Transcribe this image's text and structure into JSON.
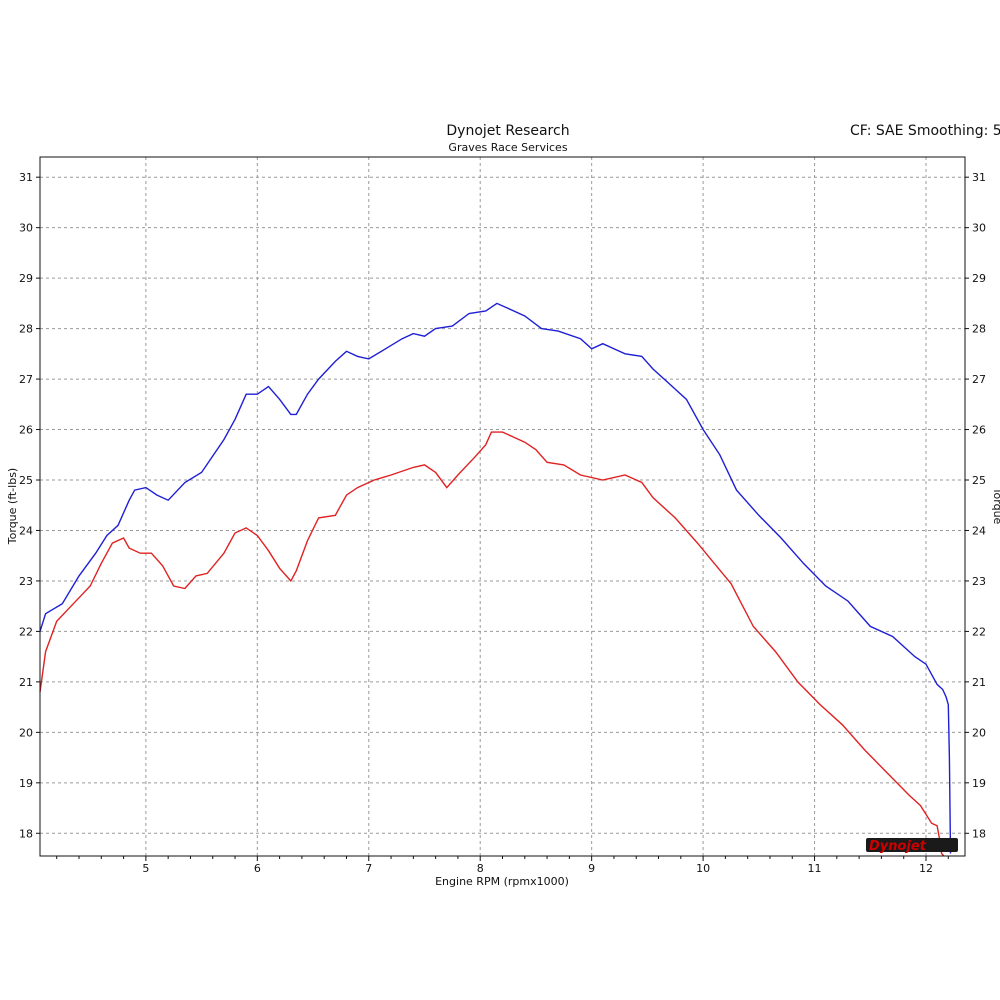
{
  "header": {
    "title": "Dynojet Research",
    "subtitle": "Graves Race Services",
    "right_text": "CF: SAE Smoothing: 5"
  },
  "logo": {
    "text": "Dynojet"
  },
  "colors": {
    "series_1": "#1f1fd6",
    "series_2": "#e02222",
    "grid": "#9a9a9a"
  },
  "chart_data": {
    "type": "line",
    "xlabel": "Engine RPM (rpmx1000)",
    "ylabel": "Torque (ft-lbs)",
    "ylabel_right": "Torque",
    "xlim": [
      4.05,
      12.35
    ],
    "ylim": [
      17.55,
      31.4
    ],
    "x_ticks": [
      "5",
      "6",
      "7",
      "8",
      "9",
      "10",
      "11",
      "12"
    ],
    "y_ticks": [
      "18",
      "19",
      "20",
      "21",
      "22",
      "23",
      "24",
      "25",
      "26",
      "27",
      "28",
      "29",
      "30",
      "31"
    ],
    "grid": true,
    "series": [
      {
        "color": "#1f1fd6",
        "x": [
          4.05,
          4.1,
          4.25,
          4.4,
          4.55,
          4.65,
          4.75,
          4.85,
          4.9,
          5.0,
          5.1,
          5.2,
          5.35,
          5.5,
          5.7,
          5.8,
          5.9,
          6.0,
          6.1,
          6.2,
          6.3,
          6.35,
          6.45,
          6.55,
          6.7,
          6.8,
          6.9,
          7.0,
          7.15,
          7.3,
          7.4,
          7.5,
          7.6,
          7.75,
          7.9,
          8.05,
          8.15,
          8.25,
          8.4,
          8.55,
          8.7,
          8.9,
          9.0,
          9.1,
          9.2,
          9.3,
          9.45,
          9.55,
          9.7,
          9.85,
          10.0,
          10.15,
          10.3,
          10.5,
          10.7,
          10.9,
          11.1,
          11.3,
          11.5,
          11.7,
          11.9,
          12.0,
          12.1,
          12.15,
          12.18,
          12.2,
          12.21,
          12.22
        ],
        "y": [
          22.0,
          22.35,
          22.55,
          23.1,
          23.55,
          23.9,
          24.1,
          24.6,
          24.8,
          24.85,
          24.7,
          24.6,
          24.95,
          25.15,
          25.8,
          26.2,
          26.7,
          26.7,
          26.85,
          26.6,
          26.3,
          26.3,
          26.7,
          27.0,
          27.35,
          27.55,
          27.45,
          27.4,
          27.6,
          27.8,
          27.9,
          27.85,
          28.0,
          28.05,
          28.3,
          28.35,
          28.5,
          28.4,
          28.25,
          28.0,
          27.95,
          27.8,
          27.6,
          27.7,
          27.6,
          27.5,
          27.45,
          27.2,
          26.9,
          26.6,
          26.0,
          25.5,
          24.8,
          24.3,
          23.85,
          23.35,
          22.9,
          22.6,
          22.1,
          21.9,
          21.5,
          21.35,
          20.95,
          20.85,
          20.7,
          20.55,
          19.5,
          17.6
        ]
      },
      {
        "color": "#e02222",
        "x": [
          4.05,
          4.1,
          4.2,
          4.35,
          4.5,
          4.6,
          4.7,
          4.8,
          4.85,
          4.95,
          5.05,
          5.15,
          5.25,
          5.35,
          5.45,
          5.55,
          5.7,
          5.8,
          5.9,
          6.0,
          6.1,
          6.2,
          6.3,
          6.35,
          6.45,
          6.55,
          6.7,
          6.8,
          6.9,
          7.05,
          7.2,
          7.4,
          7.5,
          7.6,
          7.7,
          7.8,
          7.95,
          8.05,
          8.1,
          8.2,
          8.3,
          8.4,
          8.5,
          8.6,
          8.75,
          8.9,
          9.1,
          9.3,
          9.45,
          9.55,
          9.75,
          9.95,
          10.1,
          10.25,
          10.45,
          10.65,
          10.85,
          11.05,
          11.25,
          11.45,
          11.65,
          11.85,
          11.95,
          12.05,
          12.1,
          12.12,
          12.14,
          12.16
        ],
        "y": [
          20.8,
          21.6,
          22.2,
          22.55,
          22.9,
          23.35,
          23.75,
          23.85,
          23.65,
          23.55,
          23.55,
          23.3,
          22.9,
          22.85,
          23.1,
          23.15,
          23.55,
          23.95,
          24.05,
          23.9,
          23.6,
          23.25,
          23.0,
          23.2,
          23.8,
          24.25,
          24.3,
          24.7,
          24.85,
          25.0,
          25.1,
          25.25,
          25.3,
          25.15,
          24.85,
          25.1,
          25.45,
          25.7,
          25.95,
          25.95,
          25.85,
          25.75,
          25.6,
          25.35,
          25.3,
          25.1,
          25.0,
          25.1,
          24.95,
          24.65,
          24.25,
          23.75,
          23.35,
          22.95,
          22.1,
          21.6,
          21.0,
          20.55,
          20.15,
          19.65,
          19.2,
          18.75,
          18.55,
          18.2,
          18.15,
          17.9,
          17.6,
          17.55
        ]
      }
    ]
  }
}
